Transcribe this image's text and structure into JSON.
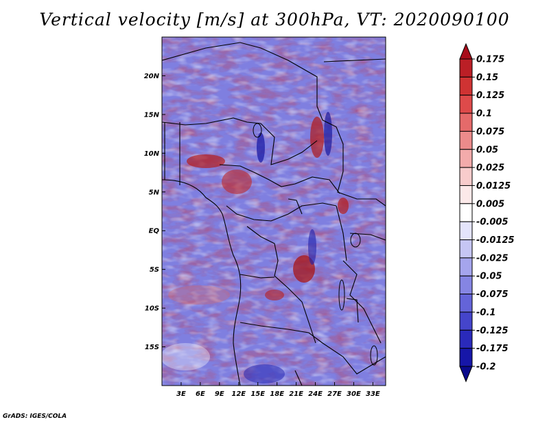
{
  "title": "Vertical velocity [m/s] at 300hPa, VT: 2020090100",
  "credit": "GrADS: IGES/COLA",
  "map": {
    "lon_range": [
      0,
      35
    ],
    "lat_range": [
      -20,
      25
    ],
    "lat_labels": [
      "20N",
      "15N",
      "10N",
      "5N",
      "EQ",
      "5S",
      "10S",
      "15S"
    ],
    "lon_labels": [
      "3E",
      "6E",
      "9E",
      "12E",
      "15E",
      "18E",
      "21E",
      "24E",
      "27E",
      "30E",
      "33E"
    ]
  },
  "colorbar": {
    "labels": [
      "0.175",
      "0.15",
      "0.125",
      "0.1",
      "0.075",
      "0.05",
      "0.025",
      "0.0125",
      "0.005",
      "-0.005",
      "-0.0125",
      "-0.025",
      "-0.05",
      "-0.075",
      "-0.1",
      "-0.125",
      "-0.175",
      "-0.2"
    ],
    "colors": [
      "#a80c1a",
      "#bb1f26",
      "#cf3333",
      "#de4a4a",
      "#e56a6a",
      "#ec8b8b",
      "#f3abab",
      "#f8cccc",
      "#fce9e9",
      "#ffffff",
      "#e4e4fb",
      "#c6c6f4",
      "#a5a5ed",
      "#8585e3",
      "#6464d9",
      "#4545cb",
      "#2a2abb",
      "#1616a8",
      "#0a0a8c"
    ]
  },
  "colors": {
    "positive": "#c83232",
    "negative": "#4646cc",
    "background": "#ffffff"
  }
}
